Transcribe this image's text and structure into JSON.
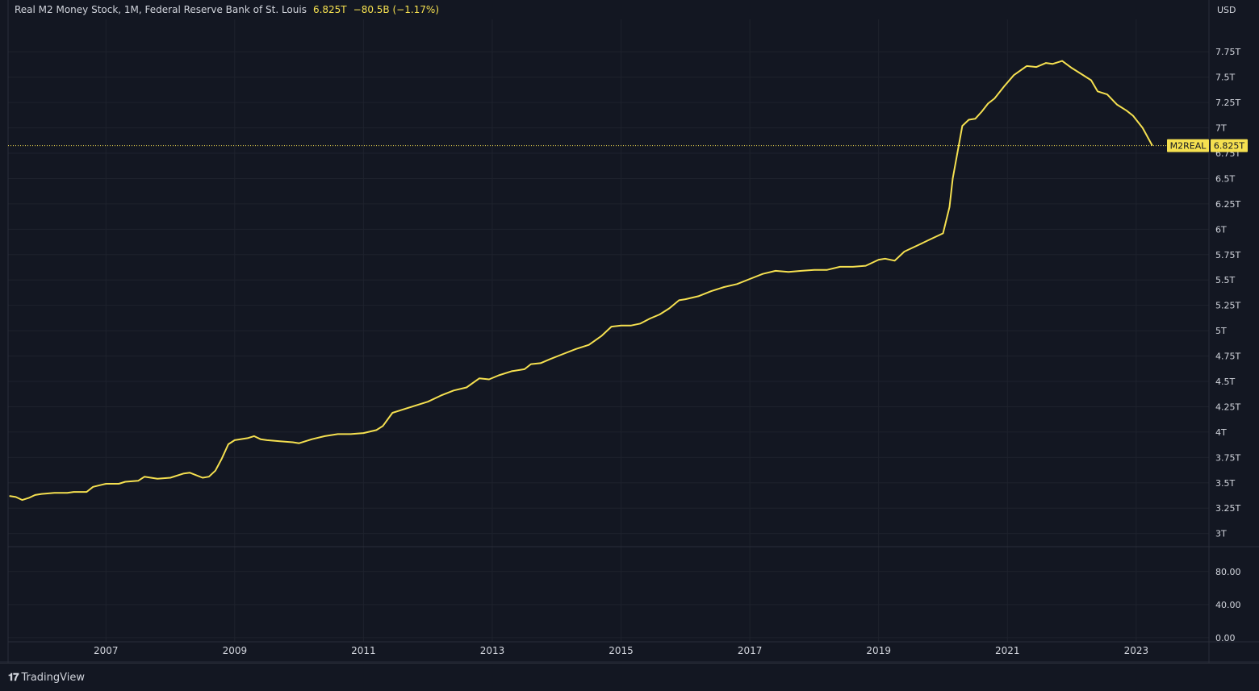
{
  "legend": {
    "title": "Real M2 Money Stock, 1M, Federal Reserve Bank of St. Louis",
    "last_value": "6.825T",
    "change": "−80.5B (−1.17%)"
  },
  "currency_label": "USD",
  "price_tag": {
    "symbol": "M2REAL",
    "value": "6.825T"
  },
  "brand": {
    "logo_glyph": "𝟏𝟕",
    "name": "TradingView"
  },
  "colors": {
    "background": "#131722",
    "line": "#f5e050",
    "grid": "#1e222d",
    "axis_text": "#d1d4dc"
  },
  "chart_data": {
    "type": "line",
    "title": "Real M2 Money Stock",
    "ylabel": "USD",
    "ylim": [
      2.87,
      8.07
    ],
    "yticks": [
      3.0,
      3.25,
      3.5,
      3.75,
      4.0,
      4.25,
      4.5,
      4.75,
      5.0,
      5.25,
      5.5,
      5.75,
      6.0,
      6.25,
      6.5,
      6.75,
      7.0,
      7.25,
      7.5,
      7.75
    ],
    "ytick_labels": [
      "3T",
      "3.25T",
      "3.5T",
      "3.75T",
      "4T",
      "4.25T",
      "4.5T",
      "4.75T",
      "5T",
      "5.25T",
      "5.5T",
      "5.75T",
      "6T",
      "6.25T",
      "6.5T",
      "6.75T",
      "7T",
      "7.25T",
      "7.5T",
      "7.75T"
    ],
    "xlim": [
      2005.48,
      2024.13
    ],
    "xticks": [
      2007,
      2009,
      2011,
      2013,
      2015,
      2017,
      2019,
      2021,
      2023
    ],
    "xtick_labels": [
      "2007",
      "2009",
      "2011",
      "2013",
      "2015",
      "2017",
      "2019",
      "2021",
      "2023"
    ],
    "lower_pane": {
      "yticks": [
        0,
        40,
        80
      ],
      "ytick_labels": [
        "0.00",
        "40.00",
        "80.00"
      ],
      "ylim": [
        -5,
        110
      ]
    },
    "last_value": 6.825,
    "series": [
      {
        "name": "M2REAL",
        "x": [
          2005.5,
          2005.6,
          2005.7,
          2005.8,
          2005.9,
          2006.0,
          2006.2,
          2006.4,
          2006.5,
          2006.7,
          2006.8,
          2007.0,
          2007.2,
          2007.3,
          2007.5,
          2007.6,
          2007.8,
          2008.0,
          2008.2,
          2008.3,
          2008.5,
          2008.6,
          2008.7,
          2008.8,
          2008.9,
          2009.0,
          2009.2,
          2009.3,
          2009.4,
          2009.5,
          2009.7,
          2009.9,
          2010.0,
          2010.1,
          2010.2,
          2010.4,
          2010.6,
          2010.8,
          2011.0,
          2011.2,
          2011.3,
          2011.45,
          2011.6,
          2011.8,
          2012.0,
          2012.2,
          2012.4,
          2012.6,
          2012.8,
          2012.95,
          2013.1,
          2013.3,
          2013.5,
          2013.6,
          2013.75,
          2013.9,
          2014.1,
          2014.3,
          2014.5,
          2014.7,
          2014.85,
          2015.0,
          2015.15,
          2015.3,
          2015.45,
          2015.6,
          2015.75,
          2015.9,
          2016.0,
          2016.2,
          2016.4,
          2016.6,
          2016.8,
          2017.0,
          2017.2,
          2017.4,
          2017.6,
          2017.8,
          2018.0,
          2018.2,
          2018.4,
          2018.6,
          2018.8,
          2019.0,
          2019.1,
          2019.25,
          2019.4,
          2019.6,
          2019.8,
          2020.0,
          2020.1,
          2020.15,
          2020.3,
          2020.4,
          2020.5,
          2020.6,
          2020.7,
          2020.8,
          2020.95,
          2021.1,
          2021.3,
          2021.45,
          2021.6,
          2021.7,
          2021.85,
          2022.0,
          2022.15,
          2022.3,
          2022.4,
          2022.55,
          2022.7,
          2022.85,
          2022.95,
          2023.1,
          2023.25
        ],
        "y": [
          3.37,
          3.36,
          3.33,
          3.35,
          3.38,
          3.39,
          3.4,
          3.4,
          3.41,
          3.41,
          3.46,
          3.49,
          3.49,
          3.51,
          3.52,
          3.56,
          3.54,
          3.55,
          3.59,
          3.6,
          3.55,
          3.56,
          3.62,
          3.74,
          3.88,
          3.92,
          3.94,
          3.96,
          3.93,
          3.92,
          3.91,
          3.9,
          3.89,
          3.91,
          3.93,
          3.96,
          3.98,
          3.98,
          3.99,
          4.02,
          4.06,
          4.19,
          4.22,
          4.26,
          4.3,
          4.36,
          4.41,
          4.44,
          4.53,
          4.52,
          4.56,
          4.6,
          4.62,
          4.67,
          4.68,
          4.72,
          4.77,
          4.82,
          4.86,
          4.95,
          5.04,
          5.05,
          5.05,
          5.07,
          5.12,
          5.16,
          5.22,
          5.3,
          5.31,
          5.34,
          5.39,
          5.43,
          5.46,
          5.51,
          5.56,
          5.59,
          5.58,
          5.59,
          5.6,
          5.6,
          5.63,
          5.63,
          5.64,
          5.7,
          5.71,
          5.69,
          5.78,
          5.84,
          5.9,
          5.96,
          6.22,
          6.5,
          7.02,
          7.08,
          7.09,
          7.16,
          7.24,
          7.29,
          7.41,
          7.52,
          7.61,
          7.6,
          7.64,
          7.63,
          7.66,
          7.59,
          7.53,
          7.47,
          7.36,
          7.33,
          7.23,
          7.17,
          7.12,
          7.0,
          6.825
        ]
      }
    ]
  }
}
